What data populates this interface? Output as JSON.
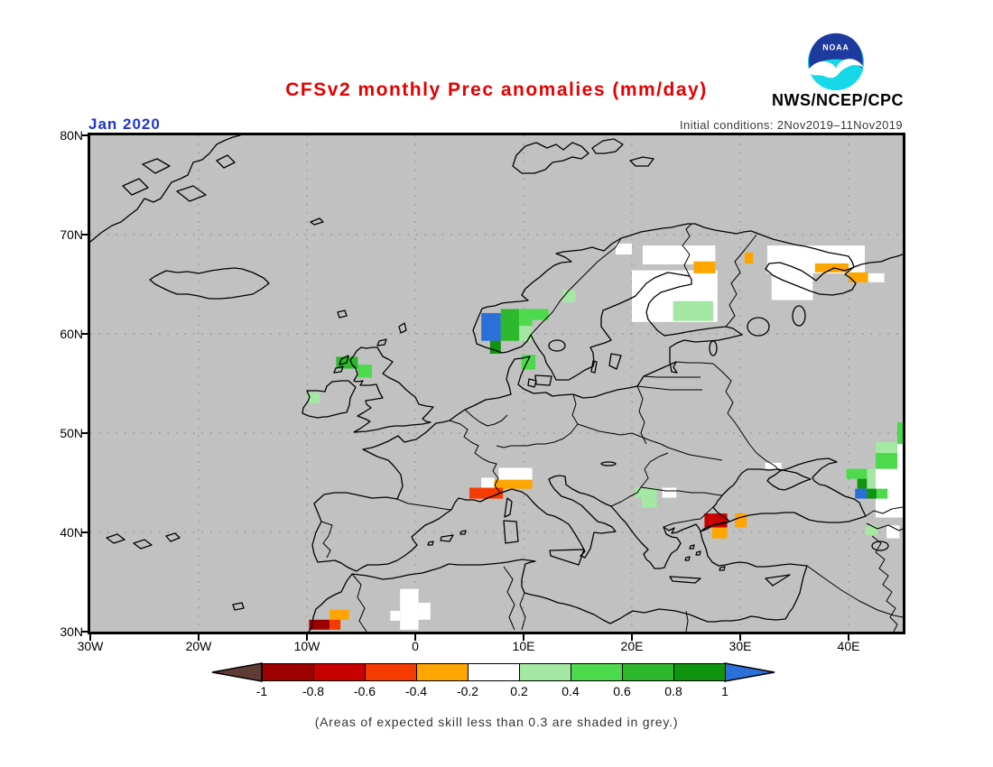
{
  "header": {
    "title": "CFSv2 monthly Prec anomalies (mm/day)",
    "date_label": "Jan 2020",
    "org": "NWS/NCEP/CPC",
    "initial_conditions": "Initial conditions: 2Nov2019–11Nov2019",
    "logo_text": "NOAA"
  },
  "footer": {
    "note": "(Areas of expected skill less than 0.3 are shaded in grey.)"
  },
  "colors": {
    "title": "#e60000",
    "date_label": "#2136d4",
    "init_text": "#3a3a3a",
    "note_text": "#333333",
    "map_background": "#c1c1c1",
    "grid": "#8f8f8f",
    "coastline": "#000000",
    "logo_blue": "#1f3a9e",
    "logo_cyan": "#17d8e8"
  },
  "chart_data": {
    "type": "heatmap",
    "title": "CFSv2 monthly Prec anomalies (mm/day)",
    "variable": "Precipitation anomaly",
    "units": "mm/day",
    "forecast_month": "Jan 2020",
    "initial_conditions": "2Nov2019-11Nov2019",
    "region": "Europe / North Atlantic",
    "lon_range": [
      -30,
      45
    ],
    "lat_range": [
      30,
      80
    ],
    "lat_ticks": [
      {
        "label": "80N",
        "lat": 80
      },
      {
        "label": "70N",
        "lat": 70
      },
      {
        "label": "60N",
        "lat": 60
      },
      {
        "label": "50N",
        "lat": 50
      },
      {
        "label": "40N",
        "lat": 40
      },
      {
        "label": "30N",
        "lat": 30
      }
    ],
    "lon_ticks": [
      {
        "label": "30W",
        "lon": -30
      },
      {
        "label": "20W",
        "lon": -20
      },
      {
        "label": "10W",
        "lon": -10
      },
      {
        "label": "0",
        "lon": 0
      },
      {
        "label": "10E",
        "lon": 10
      },
      {
        "label": "20E",
        "lon": 20
      },
      {
        "label": "30E",
        "lon": 30
      },
      {
        "label": "40E",
        "lon": 40
      }
    ],
    "grid_lons": [
      -20,
      -10,
      0,
      10,
      20,
      30,
      40
    ],
    "grid_lats": [
      70,
      60,
      50,
      40
    ],
    "colorbar": {
      "levels": [
        -1,
        -0.8,
        -0.6,
        -0.4,
        -0.2,
        0.2,
        0.4,
        0.6,
        0.8,
        1
      ],
      "tick_labels": [
        "-1",
        "-0.8",
        "-0.6",
        "-0.4",
        "-0.2",
        "0.2",
        "0.4",
        "0.6",
        "0.8",
        "1"
      ],
      "segment_colors": [
        "#9c0000",
        "#c80000",
        "#f63b00",
        "#ffa500",
        "#ffffff",
        "#a4e8a4",
        "#4cd94c",
        "#2eb82e",
        "#0f9410"
      ],
      "below_arrow_color": "#5e3c33",
      "above_arrow_color": "#2a70d8"
    },
    "value_colors": {
      "-0.9": "#9c0000",
      "-0.7": "#c80000",
      "-0.5": "#f63b00",
      "-0.3": "#ffa500",
      "0": "#ffffff",
      "0.3": "#a4e8a4",
      "0.5": "#4cd94c",
      "0.7": "#2eb82e",
      "0.9": "#0f9410",
      "1.2": "#2a70d8"
    },
    "cells_format": [
      "lon_west",
      "lon_east",
      "lat_south",
      "lat_north",
      "anomaly_value"
    ],
    "cells": [
      [
        6.1,
        7.9,
        59.3,
        62.1,
        1.2
      ],
      [
        7.9,
        9.6,
        59.3,
        62.5,
        0.7
      ],
      [
        9.6,
        10.8,
        60.8,
        62.5,
        0.5
      ],
      [
        9.6,
        10.8,
        59.3,
        60.8,
        0.3
      ],
      [
        10.8,
        12.3,
        61.4,
        62.5,
        0.5
      ],
      [
        6.9,
        7.9,
        58.0,
        59.3,
        0.9
      ],
      [
        13.6,
        14.8,
        63.2,
        64.4,
        0.3
      ],
      [
        9.8,
        11.1,
        56.4,
        57.9,
        0.5
      ],
      [
        -7.3,
        -5.3,
        56.5,
        57.7,
        0.7
      ],
      [
        -5.3,
        -4.0,
        55.6,
        56.9,
        0.5
      ],
      [
        -10.0,
        -8.8,
        53.0,
        54.1,
        0.3
      ],
      [
        18.5,
        20.0,
        68.0,
        69.1,
        0
      ],
      [
        21.0,
        27.7,
        67.0,
        68.9,
        0
      ],
      [
        20.0,
        27.9,
        61.2,
        66.4,
        0
      ],
      [
        32.5,
        41.5,
        66.1,
        68.9,
        0
      ],
      [
        32.9,
        36.7,
        63.4,
        66.1,
        0
      ],
      [
        41.8,
        43.3,
        65.2,
        66.1,
        0
      ],
      [
        25.7,
        27.7,
        66.1,
        67.3,
        -0.3
      ],
      [
        30.4,
        31.2,
        67.1,
        68.2,
        -0.3
      ],
      [
        36.9,
        40.0,
        66.2,
        67.1,
        -0.3
      ],
      [
        40.0,
        41.8,
        65.2,
        66.2,
        -0.3
      ],
      [
        23.8,
        27.5,
        61.3,
        63.3,
        0.3
      ],
      [
        7.7,
        10.8,
        45.3,
        46.5,
        0
      ],
      [
        6.1,
        7.3,
        44.5,
        45.5,
        0
      ],
      [
        7.3,
        10.8,
        44.4,
        45.3,
        -0.3
      ],
      [
        5.0,
        8.1,
        43.4,
        44.5,
        -0.5
      ],
      [
        26.7,
        28.8,
        40.5,
        41.9,
        -0.7
      ],
      [
        29.5,
        30.6,
        40.5,
        41.9,
        -0.3
      ],
      [
        27.4,
        28.8,
        39.4,
        40.5,
        -0.3
      ],
      [
        23.3,
        24.0,
        43.8,
        44.5,
        0
      ],
      [
        20.3,
        22.3,
        43.5,
        44.5,
        0.3
      ],
      [
        20.9,
        22.3,
        42.5,
        43.5,
        0.3
      ],
      [
        22.8,
        24.1,
        43.5,
        44.5,
        0
      ],
      [
        32.3,
        33.8,
        46.4,
        47.0,
        0
      ],
      [
        44.5,
        45.0,
        46.4,
        48.9,
        0
      ],
      [
        42.5,
        45.0,
        41.5,
        46.4,
        0
      ],
      [
        44.5,
        45.0,
        48.9,
        51.1,
        0.5
      ],
      [
        42.5,
        44.5,
        48.0,
        49.1,
        0.3
      ],
      [
        42.5,
        44.5,
        46.4,
        48.0,
        0.5
      ],
      [
        39.8,
        41.7,
        45.4,
        46.4,
        0.5
      ],
      [
        41.7,
        42.5,
        45.4,
        46.4,
        0.3
      ],
      [
        40.8,
        41.7,
        44.4,
        45.4,
        0.9
      ],
      [
        41.7,
        42.5,
        44.4,
        45.4,
        0.3
      ],
      [
        40.6,
        41.7,
        43.4,
        44.4,
        1.2
      ],
      [
        41.7,
        42.6,
        43.4,
        44.4,
        0.9
      ],
      [
        42.6,
        43.6,
        43.4,
        44.4,
        0.5
      ],
      [
        41.6,
        42.7,
        39.7,
        40.7,
        0.3
      ],
      [
        43.5,
        44.7,
        39.4,
        40.7,
        0
      ],
      [
        -7.9,
        -6.1,
        31.2,
        32.2,
        -0.3
      ],
      [
        -9.8,
        -7.9,
        30.2,
        31.2,
        -0.9
      ],
      [
        -7.9,
        -6.9,
        30.2,
        31.2,
        -0.5
      ],
      [
        -1.4,
        0.3,
        30.2,
        34.3,
        0
      ],
      [
        0.3,
        1.4,
        31.2,
        32.9,
        0
      ],
      [
        -2.3,
        -1.4,
        31.1,
        32.1,
        0
      ]
    ]
  }
}
